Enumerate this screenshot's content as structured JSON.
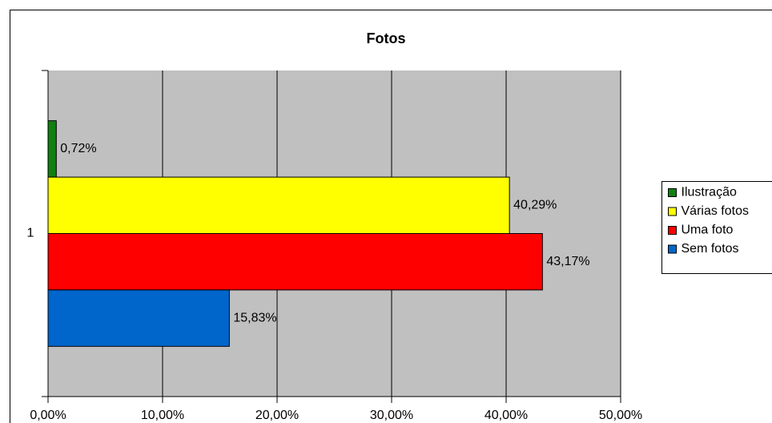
{
  "chart_data": {
    "type": "bar",
    "orientation": "horizontal",
    "title": "Fotos",
    "categories": [
      "1"
    ],
    "series": [
      {
        "name": "Ilustração",
        "color": "#108010",
        "values": [
          0.72
        ],
        "value_labels": [
          "0,72%"
        ]
      },
      {
        "name": "Várias fotos",
        "color": "#ffff00",
        "values": [
          40.29
        ],
        "value_labels": [
          "40,29%"
        ]
      },
      {
        "name": "Uma foto",
        "color": "#ff0000",
        "values": [
          43.17
        ],
        "value_labels": [
          "43,17%"
        ]
      },
      {
        "name": "Sem fotos",
        "color": "#0066cc",
        "values": [
          15.83
        ],
        "value_labels": [
          "15,83%"
        ]
      }
    ],
    "xlim": [
      0,
      50
    ],
    "xticks": [
      {
        "value": 0,
        "label": "0,00%"
      },
      {
        "value": 10,
        "label": "10,00%"
      },
      {
        "value": 20,
        "label": "20,00%"
      },
      {
        "value": 30,
        "label": "30,00%"
      },
      {
        "value": 40,
        "label": "40,00%"
      },
      {
        "value": 50,
        "label": "50,00%"
      }
    ],
    "grid": true,
    "legend": "right",
    "plot_background": "#c0c0c0"
  }
}
